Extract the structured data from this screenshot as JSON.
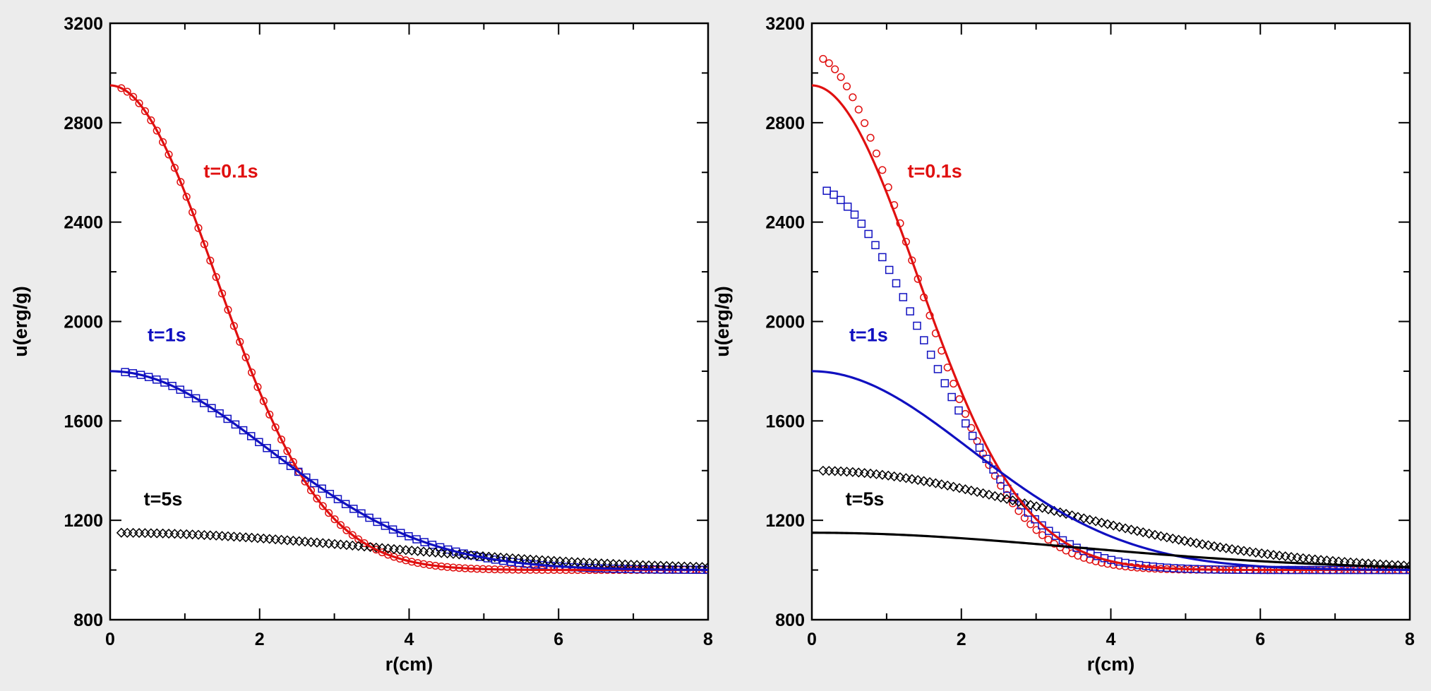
{
  "chart_data": [
    {
      "type": "line",
      "panel": "left",
      "xlabel": "r(cm)",
      "ylabel": "u(erg/g)",
      "xlim": [
        0,
        8
      ],
      "ylim": [
        800,
        3200
      ],
      "xticks": [
        0,
        2,
        4,
        6,
        8
      ],
      "yticks": [
        800,
        1200,
        1600,
        2000,
        2400,
        2800,
        3200
      ],
      "grid": false,
      "legend": "none",
      "annotations": [
        {
          "text": "t=0.1s",
          "x": 1.25,
          "y": 2580,
          "color": "#e01010"
        },
        {
          "text": "t=1s",
          "x": 0.5,
          "y": 1920,
          "color": "#1010c0"
        },
        {
          "text": "t=5s",
          "x": 0.45,
          "y": 1260,
          "color": "#000000"
        }
      ],
      "series": [
        {
          "color": "#e01010",
          "style": "line",
          "analytic": {
            "base": 1000,
            "amp": 1950,
            "width": 2.0,
            "exp": 2
          }
        },
        {
          "color": "#e01010",
          "style": "circle",
          "x_start": 0.15,
          "x_end": 8.0,
          "count": 100,
          "analytic": {
            "base": 1000,
            "amp": 1950,
            "width": 2.0,
            "exp": 2
          }
        },
        {
          "color": "#1010c0",
          "style": "line",
          "analytic": {
            "base": 1000,
            "amp": 800,
            "width": 3.0,
            "exp": 2
          }
        },
        {
          "color": "#1010c0",
          "style": "square",
          "x_start": 0.2,
          "x_end": 8.0,
          "count": 75,
          "analytic": {
            "base": 1000,
            "amp": 800,
            "width": 3.0,
            "exp": 2
          }
        },
        {
          "color": "#000000",
          "style": "diamond",
          "x_start": 0.15,
          "x_end": 8.0,
          "count": 100,
          "analytic": {
            "base": 1000,
            "amp": 150,
            "width": 5.0,
            "exp": 2
          }
        }
      ]
    },
    {
      "type": "line",
      "panel": "right",
      "xlabel": "r(cm)",
      "ylabel": "u(erg/g)",
      "xlim": [
        0,
        8
      ],
      "ylim": [
        800,
        3200
      ],
      "xticks": [
        0,
        2,
        4,
        6,
        8
      ],
      "yticks": [
        800,
        1200,
        1600,
        2000,
        2400,
        2800,
        3200
      ],
      "grid": false,
      "legend": "none",
      "annotations": [
        {
          "text": "t=0.1s",
          "x": 1.28,
          "y": 2580,
          "color": "#e01010"
        },
        {
          "text": "t=1s",
          "x": 0.5,
          "y": 1920,
          "color": "#1010c0"
        },
        {
          "text": "t=5s",
          "x": 0.45,
          "y": 1260,
          "color": "#000000"
        }
      ],
      "series": [
        {
          "color": "#e01010",
          "style": "line",
          "analytic": {
            "base": 1000,
            "amp": 1950,
            "width": 2.0,
            "exp": 2
          }
        },
        {
          "color": "#e01010",
          "style": "circle",
          "x_start": 0.15,
          "x_end": 8.0,
          "count": 100,
          "analytic": {
            "base": 1000,
            "amp": 2070,
            "width": 1.88,
            "exp": 2
          }
        },
        {
          "color": "#1010c0",
          "style": "line",
          "analytic": {
            "base": 1000,
            "amp": 800,
            "width": 3.0,
            "exp": 2
          }
        },
        {
          "color": "#1010c0",
          "style": "square",
          "x_start": 0.2,
          "x_end": 8.0,
          "count": 85,
          "analytic": {
            "base": 1000,
            "amp": 1540,
            "width": 2.1,
            "exp": 2
          }
        },
        {
          "color": "#000000",
          "style": "line",
          "analytic": {
            "base": 1000,
            "amp": 150,
            "width": 5.0,
            "exp": 2
          }
        },
        {
          "color": "#000000",
          "style": "diamond",
          "x_start": 0.15,
          "x_end": 8.0,
          "count": 100,
          "analytic": {
            "base": 1000,
            "amp": 400,
            "width": 4.5,
            "exp": 2
          }
        }
      ]
    }
  ]
}
